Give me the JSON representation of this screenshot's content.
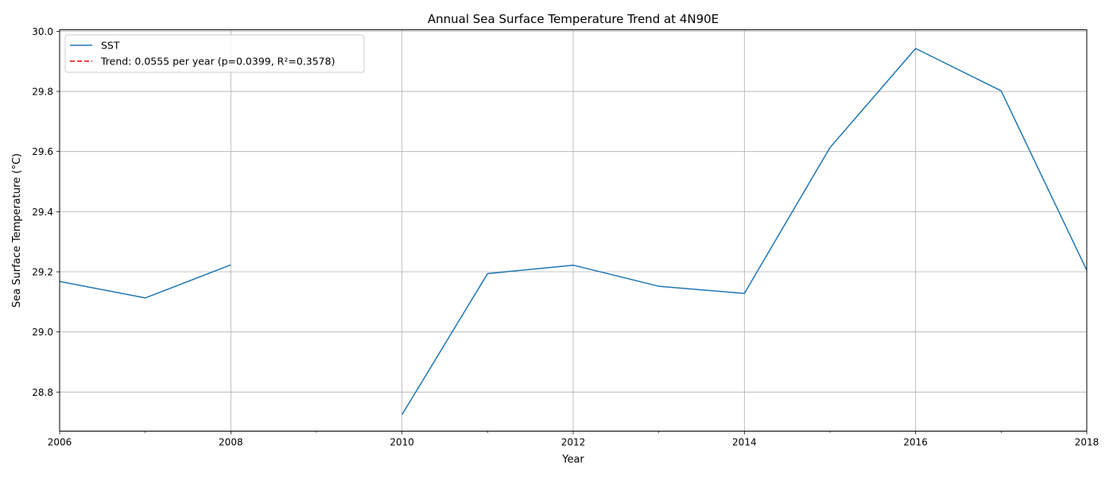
{
  "chart_data": {
    "type": "line",
    "title": "Annual Sea Surface Temperature Trend at 4N90E",
    "xlabel": "Year",
    "ylabel": "Sea Surface Temperature (°C)",
    "xlim": [
      2006,
      2018
    ],
    "ylim": [
      28.67,
      30.005
    ],
    "x_ticks_major": [
      2006,
      2008,
      2010,
      2012,
      2014,
      2016,
      2018
    ],
    "x_tick_labels": [
      "2006",
      "2008",
      "2010",
      "2012",
      "2014",
      "2016",
      "2018"
    ],
    "x_ticks_minor": [
      2007,
      2009,
      2011,
      2013,
      2015,
      2017
    ],
    "y_ticks": [
      28.8,
      29.0,
      29.2,
      29.4,
      29.6,
      29.8,
      30.0
    ],
    "y_tick_labels": [
      "28.8",
      "29.0",
      "29.2",
      "29.4",
      "29.6",
      "29.8",
      "30.0"
    ],
    "grid": true,
    "legend_position": "top-left",
    "series": [
      {
        "name": "SST",
        "color": "#1f77b4",
        "style": "solid",
        "segments": [
          [
            [
              2006,
              29.168
            ],
            [
              2007,
              29.113
            ],
            [
              2008,
              29.223
            ]
          ],
          [
            [
              2010,
              28.725
            ],
            [
              2011,
              29.194
            ],
            [
              2012,
              29.222
            ],
            [
              2013,
              29.152
            ],
            [
              2014,
              29.128
            ],
            [
              2015,
              29.613
            ],
            [
              2016,
              29.943
            ],
            [
              2017,
              29.802
            ],
            [
              2018,
              29.205
            ]
          ]
        ]
      },
      {
        "name": "Trend: 0.0555 per year (p=0.0399, R²=0.3578)",
        "color": "#ff0000",
        "style": "dashed",
        "segments": []
      }
    ]
  }
}
